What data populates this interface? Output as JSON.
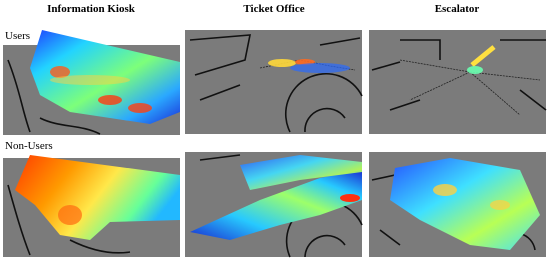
{
  "columns": [
    "Information Kiosk",
    "Ticket Office",
    "Escalator"
  ],
  "rows": [
    "Users",
    "Non-Users"
  ]
}
